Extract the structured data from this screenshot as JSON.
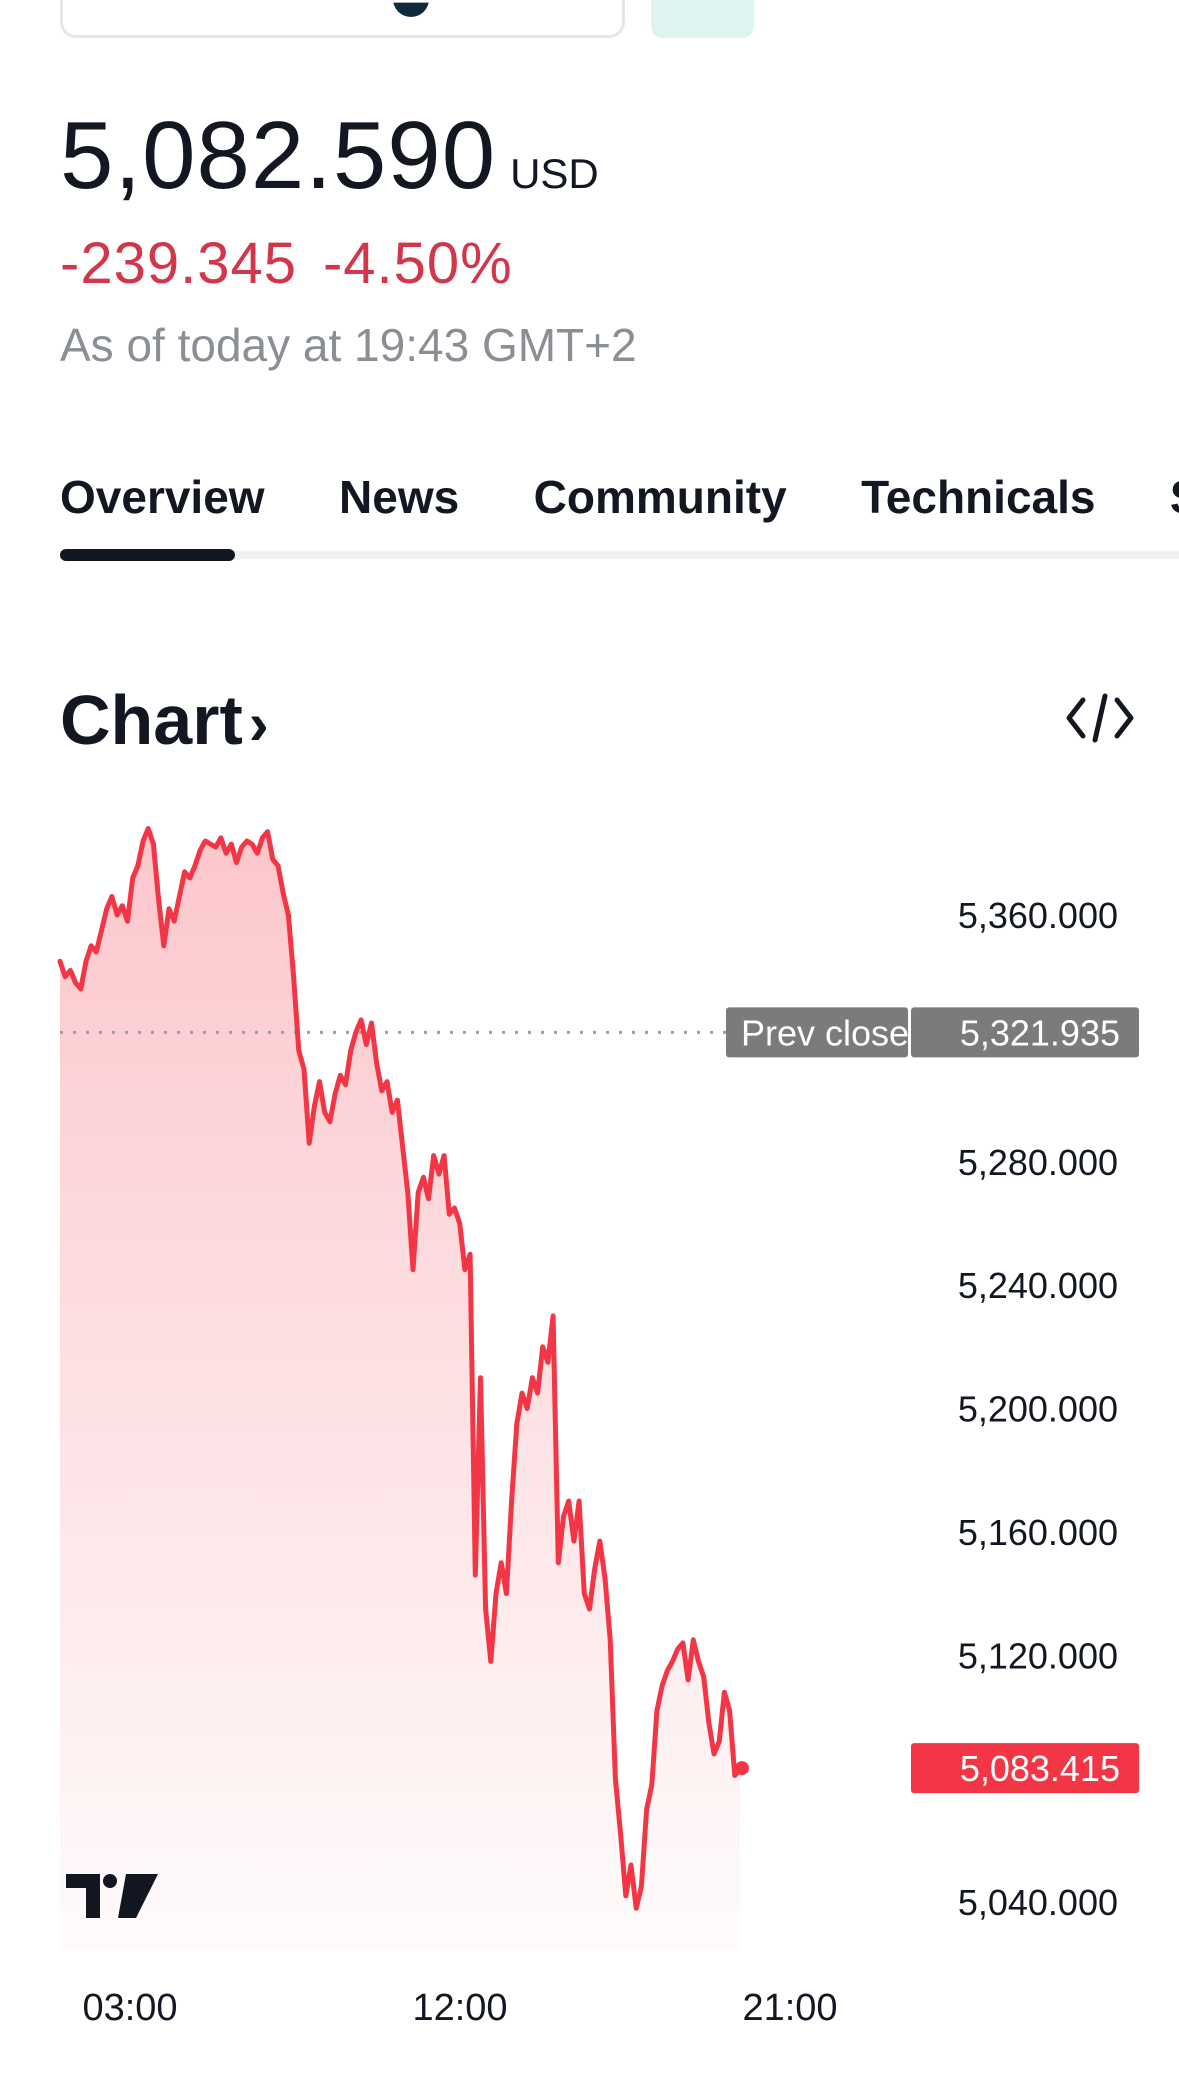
{
  "header": {
    "price": "5,082.590",
    "currency": "USD",
    "change": "-239.345",
    "change_percent": "-4.50%",
    "as_of": "As of today at 19:43 GMT+2"
  },
  "tabs": [
    "Overview",
    "News",
    "Community",
    "Technicals",
    "Seasonals"
  ],
  "section": {
    "title": "Chart",
    "title_chevron": "›",
    "embed_icon": "code-embed-icon"
  },
  "colors": {
    "down": "#d1364a",
    "line": "#f23645",
    "prev_close_badge": "#7b7b7b"
  },
  "chart_data": {
    "type": "area",
    "x_ticks": [
      "03:00",
      "12:00",
      "21:00"
    ],
    "y_ticks": [
      "5,360.000",
      "5,280.000",
      "5,240.000",
      "5,200.000",
      "5,160.000",
      "5,120.000",
      "5,040.000"
    ],
    "ylim": [
      5025,
      5395
    ],
    "prev_close": {
      "label": "Prev close",
      "value": 5321.935,
      "value_text": "5,321.935"
    },
    "last": {
      "value": 5083.415,
      "value_text": "5,083.415"
    },
    "series": [
      {
        "values": [
          5345,
          5340,
          5342,
          5338,
          5336,
          5345,
          5350,
          5348,
          5355,
          5362,
          5366,
          5360,
          5363,
          5358,
          5372,
          5376,
          5384,
          5388,
          5383,
          5365,
          5350,
          5362,
          5358,
          5366,
          5374,
          5372,
          5376,
          5381,
          5384,
          5383,
          5382,
          5385,
          5380,
          5383,
          5377,
          5382,
          5384,
          5383,
          5380,
          5385,
          5387,
          5378,
          5376,
          5367,
          5360,
          5340,
          5316,
          5310,
          5286,
          5298,
          5306,
          5296,
          5293,
          5302,
          5308,
          5305,
          5316,
          5322,
          5326,
          5318,
          5325,
          5312,
          5303,
          5306,
          5296,
          5300,
          5285,
          5270,
          5245,
          5270,
          5275,
          5268,
          5282,
          5276,
          5282,
          5263,
          5265,
          5260,
          5245,
          5250,
          5146,
          5210,
          5135,
          5118,
          5140,
          5150,
          5140,
          5170,
          5195,
          5205,
          5200,
          5210,
          5205,
          5220,
          5215,
          5230,
          5150,
          5165,
          5170,
          5157,
          5170,
          5140,
          5135,
          5148,
          5157,
          5145,
          5125,
          5080,
          5062,
          5042,
          5052,
          5038,
          5045,
          5070,
          5078,
          5102,
          5110,
          5115,
          5118,
          5122,
          5124,
          5112,
          5125,
          5118,
          5113,
          5098,
          5088,
          5092,
          5108,
          5102,
          5081,
          5083
        ]
      }
    ]
  },
  "brand": {
    "logo_icon": "tradingview-logo-icon"
  }
}
